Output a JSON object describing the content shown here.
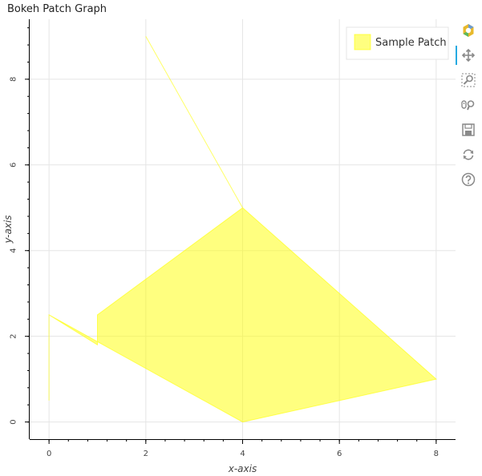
{
  "chart_data": {
    "type": "area",
    "title": "Bokeh Patch Graph",
    "xlabel": "x-axis",
    "ylabel": "y-axis",
    "xlim": [
      -0.4,
      8.4
    ],
    "ylim": [
      -0.4,
      9.4
    ],
    "xticks": [
      0,
      2,
      4,
      6,
      8
    ],
    "yticks": [
      0,
      2,
      4,
      6,
      8
    ],
    "grid": true,
    "legend_position": "top-right",
    "series": [
      {
        "name": "Sample Patch",
        "color": "#ffff00",
        "alpha": 0.5,
        "x": [
          0,
          0,
          1,
          1,
          4,
          2,
          4,
          8,
          4,
          0
        ],
        "y": [
          0.5,
          2.5,
          1.8,
          2.5,
          5,
          9,
          5,
          1,
          0,
          2.5
        ]
      }
    ]
  },
  "toolbar": {
    "tools": [
      {
        "icon": "bokeh-logo-icon",
        "active": false
      },
      {
        "icon": "pan-icon",
        "active": true
      },
      {
        "icon": "box-zoom-icon",
        "active": false
      },
      {
        "icon": "wheel-zoom-icon",
        "active": false
      },
      {
        "icon": "save-icon",
        "active": false
      },
      {
        "icon": "reset-icon",
        "active": false
      },
      {
        "icon": "help-icon",
        "active": false
      }
    ]
  }
}
